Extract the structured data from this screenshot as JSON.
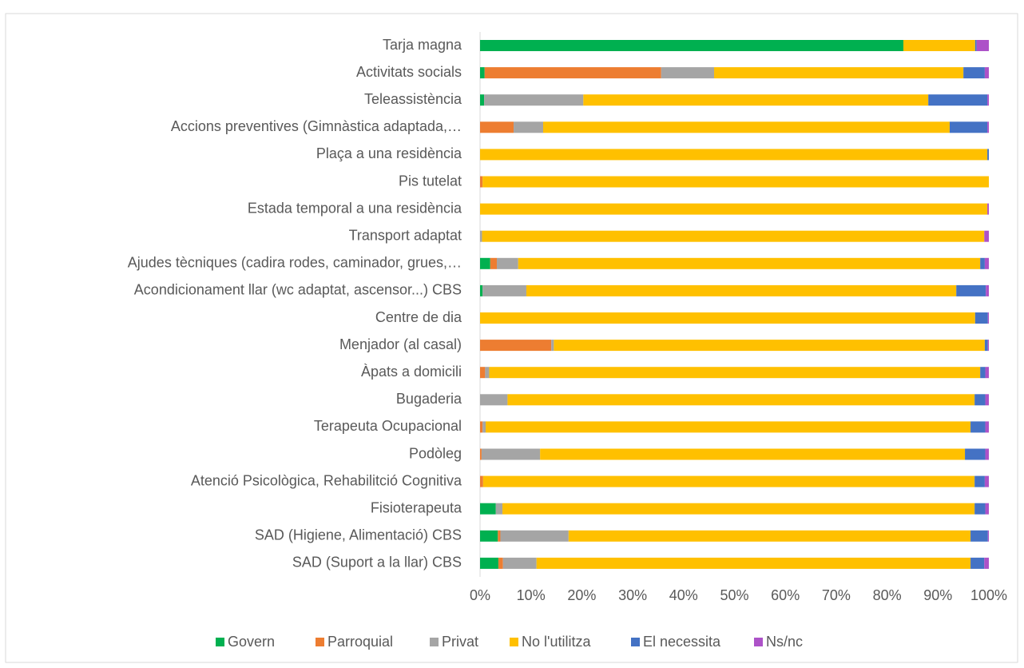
{
  "chart_data": {
    "type": "stacked_barh",
    "categories": [
      "Tarja magna",
      "Activitats socials",
      "Teleassistència",
      "Accions preventives (Gimnàstica adaptada,…",
      "Plaça a una residència",
      "Pis tutelat",
      "Estada temporal a una residència",
      "Transport adaptat",
      "Ajudes tècniques (cadira rodes, caminador, grues,…",
      "Acondicionament llar (wc adaptat, ascensor...) CBS",
      "Centre de dia",
      "Menjador (al casal)",
      "Àpats a domicili",
      "Bugaderia",
      "Terapeuta Ocupacional",
      "Podòleg",
      "Atenció Psicològica, Rehabilitció Cognitiva",
      "Fisioterapeuta",
      "SAD (Higiene, Alimentació) CBS",
      "SAD (Suport a la llar) CBS"
    ],
    "series": [
      {
        "name": "Govern",
        "color": "#00b050",
        "values": [
          83.2,
          0.9,
          0.8,
          0,
          0,
          0,
          0,
          0,
          2.0,
          0.5,
          0,
          0,
          0,
          0,
          0,
          0,
          0,
          3.1,
          3.5,
          3.6
        ]
      },
      {
        "name": "Parroquial",
        "color": "#ed7d31",
        "values": [
          0,
          34.7,
          0,
          6.6,
          0,
          0.5,
          0,
          0,
          1.3,
          0,
          0,
          14.0,
          1.0,
          0,
          0.5,
          0.3,
          0.6,
          0,
          0.5,
          0.9
        ]
      },
      {
        "name": "Privat",
        "color": "#a5a5a5",
        "values": [
          0,
          10.4,
          19.5,
          5.8,
          0,
          0,
          0,
          0.4,
          4.2,
          8.6,
          0,
          0.5,
          0.8,
          5.4,
          0.6,
          11.5,
          0,
          1.3,
          13.4,
          6.6
        ]
      },
      {
        "name": "No l'utilitza",
        "color": "#ffc000",
        "values": [
          14.1,
          49.0,
          67.8,
          79.9,
          99.7,
          99.5,
          99.7,
          98.7,
          90.8,
          84.5,
          97.3,
          84.7,
          96.5,
          91.8,
          95.3,
          83.5,
          96.6,
          92.8,
          79.0,
          85.3
        ]
      },
      {
        "name": "El necessita",
        "color": "#4472c4",
        "values": [
          0.3,
          4.2,
          11.6,
          7.4,
          0.3,
          0,
          0,
          0,
          0.9,
          5.8,
          2.5,
          0.6,
          1.0,
          2.1,
          2.9,
          4.0,
          2.0,
          2.1,
          3.4,
          2.7
        ]
      },
      {
        "name": "Ns/nc",
        "color": "#ad52c8",
        "values": [
          2.4,
          0.8,
          0.3,
          0.3,
          0,
          0,
          0.3,
          0.9,
          0.8,
          0.6,
          0.2,
          0.2,
          0.7,
          0.7,
          0.7,
          0.7,
          0.8,
          0.7,
          0.2,
          0.9
        ]
      }
    ],
    "xlim": [
      0,
      100
    ],
    "xticks": [
      {
        "value": 0,
        "label": "0%"
      },
      {
        "value": 10,
        "label": "10%"
      },
      {
        "value": 20,
        "label": "20%"
      },
      {
        "value": 30,
        "label": "30%"
      },
      {
        "value": 40,
        "label": "40%"
      },
      {
        "value": 50,
        "label": "50%"
      },
      {
        "value": 60,
        "label": "60%"
      },
      {
        "value": 70,
        "label": "70%"
      },
      {
        "value": 80,
        "label": "80%"
      },
      {
        "value": 90,
        "label": "90%"
      },
      {
        "value": 100,
        "label": "100%"
      }
    ],
    "grid": false,
    "legend": "bottom"
  }
}
